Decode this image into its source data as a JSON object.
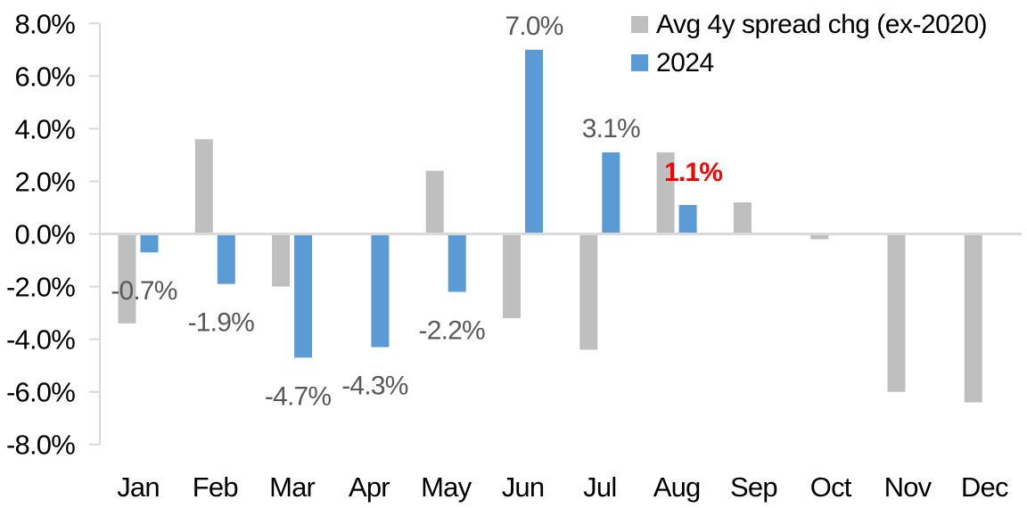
{
  "chart_data": {
    "type": "bar",
    "title": "",
    "categories": [
      "Jan",
      "Feb",
      "Mar",
      "Apr",
      "May",
      "Jun",
      "Jul",
      "Aug",
      "Sep",
      "Oct",
      "Nov",
      "Dec"
    ],
    "series": [
      {
        "name": "Avg 4y spread chg (ex-2020)",
        "color": "#BFBFBF",
        "values": [
          -3.4,
          3.6,
          -2.0,
          0.0,
          2.4,
          -3.2,
          -4.4,
          3.1,
          1.2,
          -0.2,
          -6.0,
          -6.4
        ]
      },
      {
        "name": "2024",
        "color": "#5B9BD5",
        "values": [
          -0.7,
          -1.9,
          -4.7,
          -4.3,
          -2.2,
          7.0,
          3.1,
          1.1,
          null,
          null,
          null,
          null
        ]
      }
    ],
    "data_labels": {
      "on_series": "2024",
      "texts": [
        "-0.7%",
        "-1.9%",
        "-4.7%",
        "-4.3%",
        "-2.2%",
        "7.0%",
        "3.1%",
        "1.1%",
        null,
        null,
        null,
        null
      ],
      "default_color": "#595959",
      "highlight_index": 7,
      "highlight_color": "#FF0000",
      "highlight_bold": true
    },
    "y_axis": {
      "tick_labels": [
        "8.0%",
        "6.0%",
        "4.0%",
        "2.0%",
        "0.0%",
        "-2.0%",
        "-4.0%",
        "-6.0%",
        "-8.0%"
      ],
      "min": -8,
      "max": 8,
      "step": 2,
      "label_color": "#000000"
    },
    "x_axis": {
      "label_color": "#000000"
    },
    "legend": {
      "position": "top-right",
      "entries": [
        {
          "label": "Avg 4y spread chg (ex-2020)",
          "color": "#BFBFBF"
        },
        {
          "label": "2024",
          "color": "#5B9BD5"
        }
      ]
    },
    "grid": "zero-line-only",
    "gridline_color": "#D9D9D9",
    "background": "#FFFFFF"
  }
}
